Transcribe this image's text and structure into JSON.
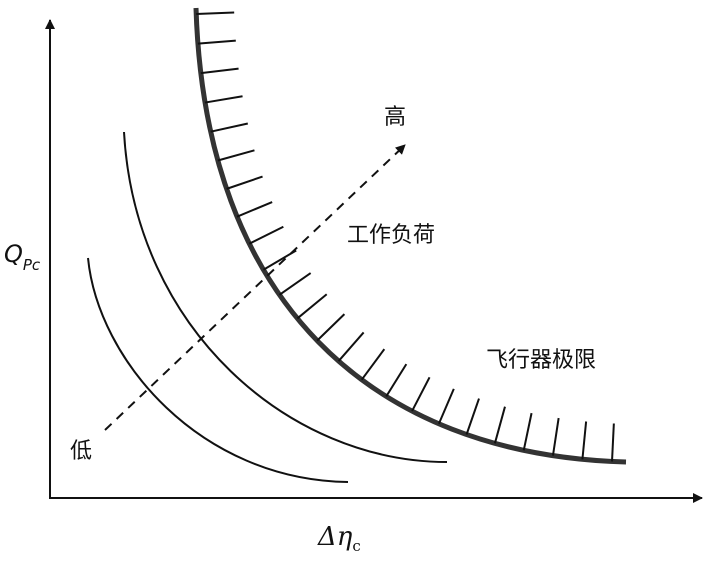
{
  "axes": {
    "y_label": {
      "main": "Q",
      "sub": "Pc"
    },
    "x_label": {
      "main": "Δη",
      "sub": "c"
    }
  },
  "labels": {
    "high": "高",
    "low": "低",
    "workload": "工作负荷",
    "limit": "飞行器极限"
  }
}
